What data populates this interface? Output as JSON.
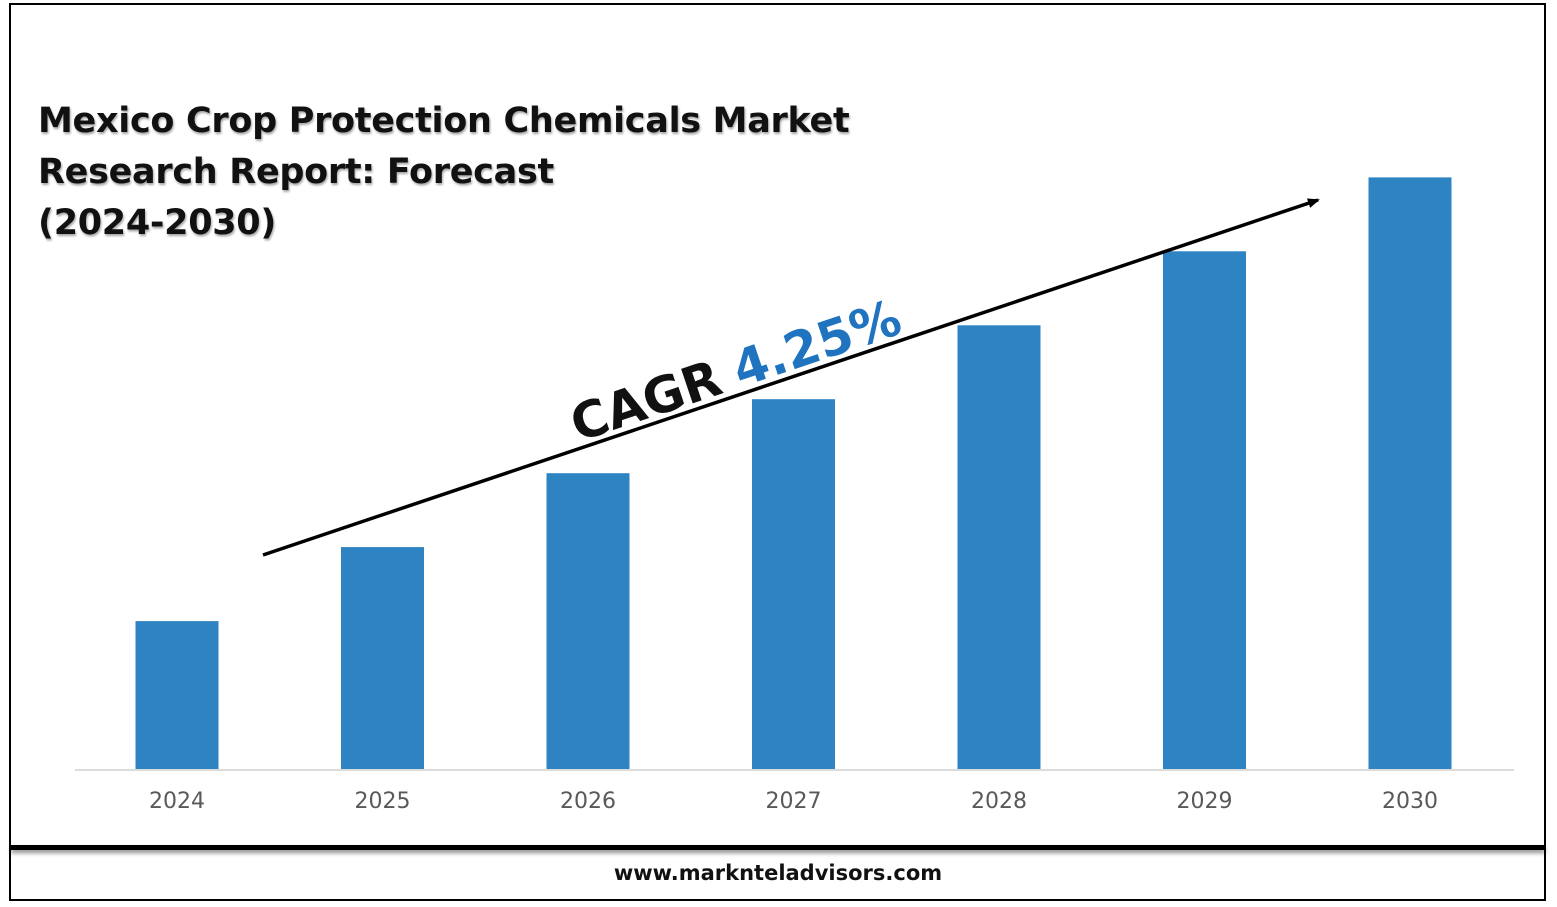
{
  "chart_data": {
    "type": "bar",
    "title": "Mexico Crop Protection Chemicals Market Research Report: Forecast (2024-2030)",
    "title_lines": [
      "Mexico Crop Protection Chemicals Market",
      "Research Report: Forecast",
      "(2024-2030)"
    ],
    "categories": [
      "2024",
      "2025",
      "2026",
      "2027",
      "2028",
      "2029",
      "2030"
    ],
    "values": [
      1.0,
      1.5,
      2.0,
      2.5,
      3.0,
      3.5,
      4.0
    ],
    "ylim": [
      0,
      4.3
    ],
    "xlabel": "",
    "ylabel": "",
    "grid": false,
    "bar_color": "#2E83C3",
    "annotation": {
      "label": "CAGR",
      "value": "4.25%",
      "value_color": "#1F73BF"
    }
  },
  "footer": {
    "website": "www.marknteladvisors.com"
  }
}
